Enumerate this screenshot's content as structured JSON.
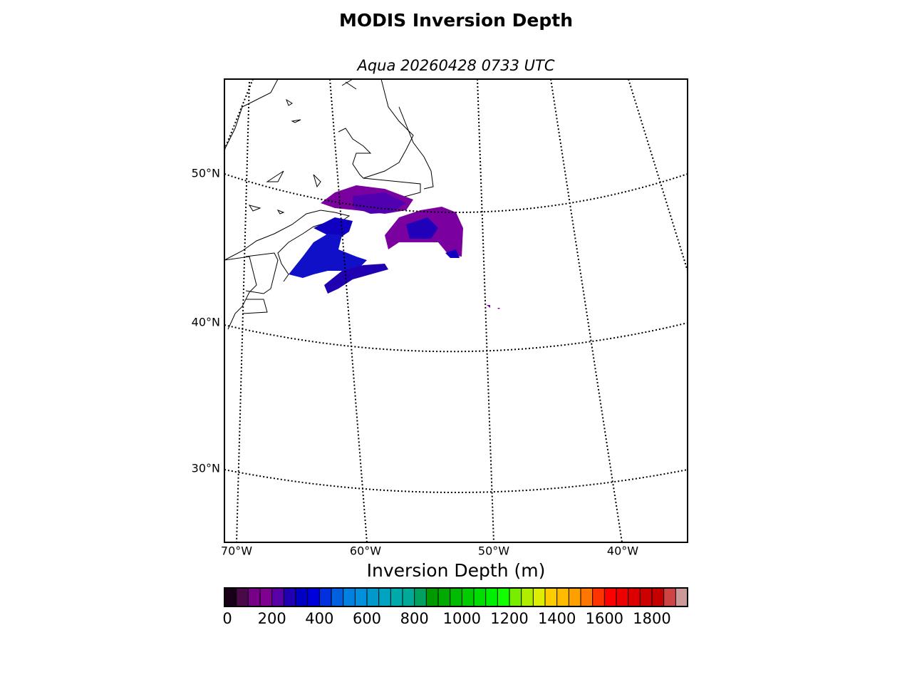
{
  "title": "MODIS Inversion Depth",
  "subtitle": "Aqua 20260428 0733 UTC",
  "lat_labels": [
    "50°N",
    "40°N",
    "30°N"
  ],
  "lon_labels": [
    "70°W",
    "60°W",
    "50°W",
    "40°W"
  ],
  "colorbar": {
    "label": "Inversion Depth (m)",
    "lim": [
      0,
      1950
    ],
    "ticks": [
      0,
      200,
      400,
      600,
      800,
      1000,
      1200,
      1400,
      1600,
      1800
    ],
    "colors": [
      "#180018",
      "#4a0a4a",
      "#780088",
      "#800090",
      "#5a00a8",
      "#2000b0",
      "#0000c4",
      "#0000dd",
      "#0030e0",
      "#0060e0",
      "#0080e0",
      "#0090dd",
      "#0099cc",
      "#00a4c0",
      "#00aaaa",
      "#00aa99",
      "#00a060",
      "#009900",
      "#00aa00",
      "#00bb00",
      "#00cc00",
      "#00dd00",
      "#00ee00",
      "#11ff00",
      "#77ee00",
      "#b0ee00",
      "#ddee00",
      "#ffcc00",
      "#ffbb00",
      "#ffa000",
      "#ff7700",
      "#ff3300",
      "#ff0000",
      "#ee0000",
      "#dd0000",
      "#cc0000",
      "#c40000",
      "#cc4444",
      "#cc9999"
    ]
  }
}
